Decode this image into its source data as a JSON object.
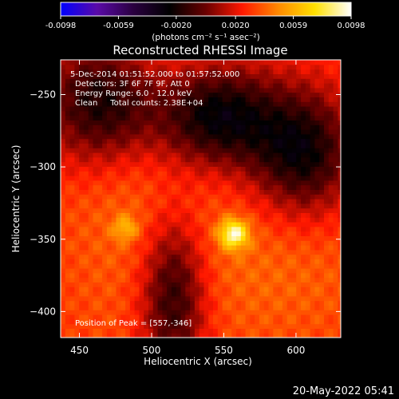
{
  "colorbar": {
    "ticks": [
      "-0.0098",
      "-0.0059",
      "-0.0020",
      "0.0020",
      "0.0059",
      "0.0098"
    ],
    "tick_values": [
      -0.0098,
      -0.0059,
      -0.002,
      0.002,
      0.0059,
      0.0098
    ],
    "unit_label": "(photons cm⁻² s⁻¹ asec⁻²)",
    "colormap": [
      "#0000ff",
      "#5a0aa8",
      "#2a0040",
      "#000000",
      "#6a0000",
      "#ff1800",
      "#ff8a00",
      "#ffe000",
      "#ffffff"
    ]
  },
  "chart_data": {
    "type": "heatmap",
    "title": "Reconstructed RHESSI Image",
    "xlabel": "Heliocentric X (arcsec)",
    "ylabel": "Heliocentric Y (arcsec)",
    "xlim": [
      437,
      631
    ],
    "ylim": [
      -418,
      -226
    ],
    "x_ticks": [
      450,
      500,
      550,
      600
    ],
    "y_ticks": [
      -250,
      -300,
      -350,
      -400
    ],
    "x_tick_labels": [
      "450",
      "500",
      "550",
      "600"
    ],
    "y_tick_labels": [
      "−250",
      "−300",
      "−350",
      "−400"
    ],
    "annotations": [
      "5-Dec-2014 01:51:52.000 to 01:57:52.000",
      "Detectors: 3F 6F 7F 9F, Att 0",
      "Energy Range: 6.0 - 12.0 keV",
      "Clean     Total counts: 2.38E+04"
    ],
    "peak_label": "Position of Peak = [557,-346]",
    "peak": {
      "x": 557,
      "y": -346,
      "value": 0.0098
    },
    "secondary_source": {
      "x": 482,
      "y": -342,
      "value": 0.0055
    },
    "background_features": [
      {
        "x": 465,
        "y": -255,
        "value": -0.002
      },
      {
        "x": 545,
        "y": -265,
        "value": -0.0025
      },
      {
        "x": 515,
        "y": -390,
        "value": -0.0015
      },
      {
        "x": 605,
        "y": -290,
        "value": -0.0018
      }
    ]
  },
  "timestamp": "20-May-2022 05:41"
}
